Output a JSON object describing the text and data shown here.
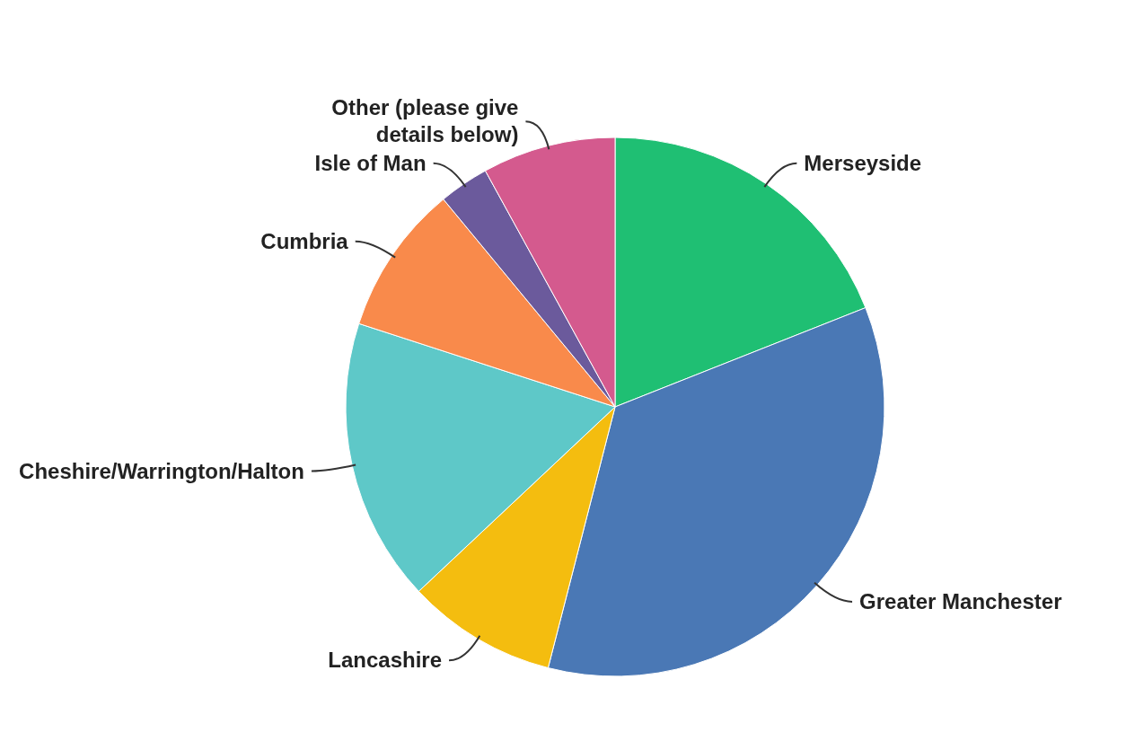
{
  "chart_data": {
    "type": "pie",
    "categories": [
      "Merseyside",
      "Greater Manchester",
      "Lancashire",
      "Cheshire/Warrington/Halton",
      "Cumbria",
      "Isle of Man",
      "Other (please give details below)"
    ],
    "values": [
      19,
      35,
      9,
      17,
      9,
      3,
      8
    ],
    "colors": [
      "#1fbf73",
      "#4a78b5",
      "#f4bd0f",
      "#5ec8c8",
      "#f98a4b",
      "#6b5a9c",
      "#d45a8e"
    ],
    "legend": false
  }
}
